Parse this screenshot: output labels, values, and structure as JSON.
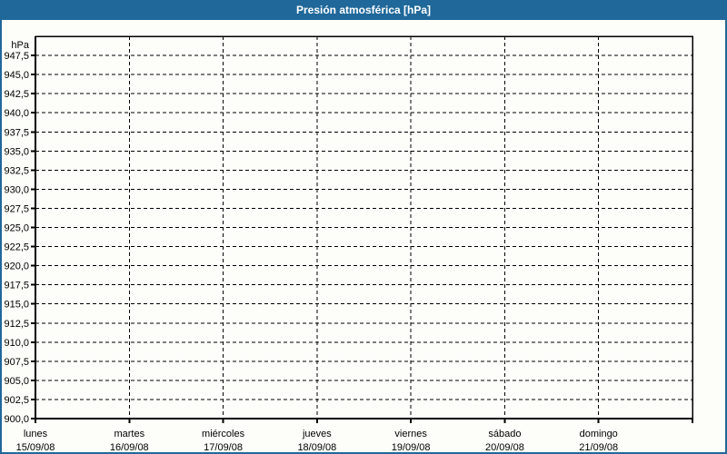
{
  "title_bar": {
    "title": "Presión atmosférica [hPa]"
  },
  "colors": {
    "header_bg": "#20689a",
    "header_text": "#ffffff",
    "frame_border": "#20689a",
    "page_bg": "#fdfdf9",
    "axis_color": "#000000",
    "grid_color": "#000000",
    "label_color": "#000000"
  },
  "chart_data": {
    "type": "line",
    "title": "Presión atmosférica [hPa]",
    "y_axis_unit": "hPa",
    "ylim": [
      900,
      950
    ],
    "y_tick_step": 2.5,
    "y_tick_labels": [
      "947,5",
      "945,0",
      "942,5",
      "940,0",
      "937,5",
      "935,0",
      "932,5",
      "930,0",
      "927,5",
      "925,0",
      "922,5",
      "920,0",
      "917,5",
      "915,0",
      "912,5",
      "910,0",
      "907,5",
      "905,0",
      "902,5",
      "900,0"
    ],
    "x_categories": [
      {
        "day": "lunes",
        "date": "15/09/08"
      },
      {
        "day": "martes",
        "date": "16/09/08"
      },
      {
        "day": "miércoles",
        "date": "17/09/08"
      },
      {
        "day": "jueves",
        "date": "18/09/08"
      },
      {
        "day": "viernes",
        "date": "19/09/08"
      },
      {
        "day": "sábado",
        "date": "20/09/08"
      },
      {
        "day": "domingo",
        "date": "21/09/08"
      }
    ],
    "grid": "dashed",
    "legend": "none",
    "series": []
  }
}
